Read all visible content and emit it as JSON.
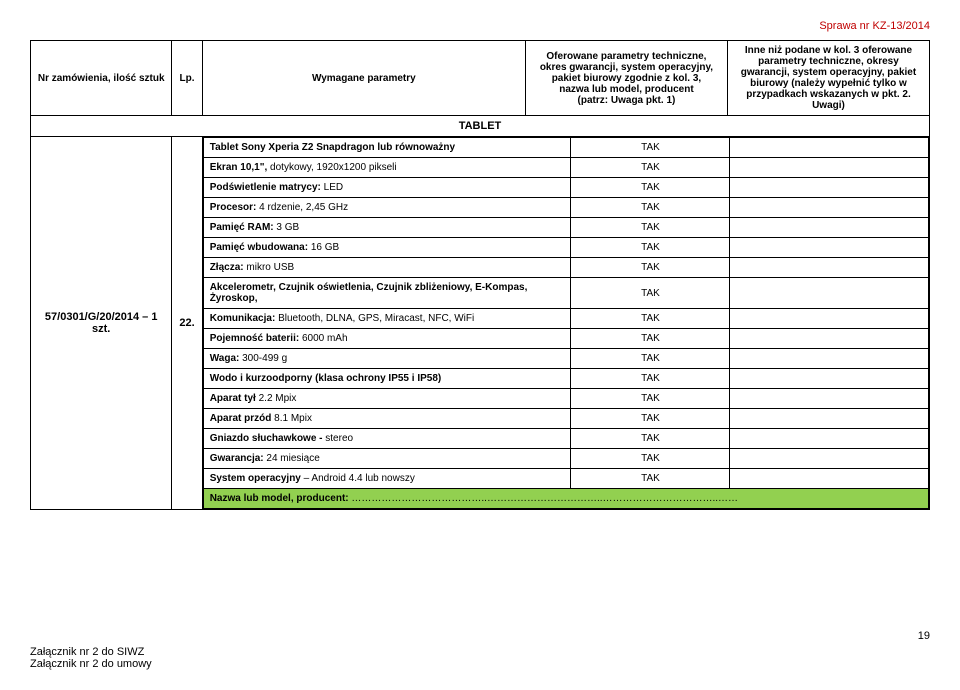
{
  "header": {
    "case_no": "Sprawa nr KZ-13/2014"
  },
  "columns": {
    "nr": "Nr zamówienia, ilość sztuk",
    "lp": "Lp.",
    "param": "Wymagane parametry",
    "offer1": "Oferowane parametry techniczne, okres gwarancji, system operacyjny, pakiet biurowy zgodnie z kol. 3,\nnazwa lub model, producent\n(patrz: Uwaga pkt. 1)",
    "offer2": "Inne niż podane w kol. 3 oferowane parametry techniczne, okresy gwarancji, system operacyjny, pakiet biurowy (należy wypełnić tylko w przypadkach wskazanych w pkt. 2. Uwagi)"
  },
  "section_title": "TABLET",
  "order": {
    "ref": "57/0301/G/20/2014 – 1 szt.",
    "lp": "22."
  },
  "specs": [
    {
      "label_bold": "Tablet Sony Xperia Z2 Snapdragon lub równoważny",
      "label_rest": "",
      "tak": "TAK"
    },
    {
      "label_bold": "Ekran 10,1\", ",
      "label_rest": "dotykowy, 1920x1200 pikseli",
      "tak": "TAK"
    },
    {
      "label_bold": "Podświetlenie matrycy: ",
      "label_rest": "LED",
      "tak": "TAK"
    },
    {
      "label_bold": "Procesor: ",
      "label_rest": " 4 rdzenie, 2,45 GHz",
      "tak": "TAK"
    },
    {
      "label_bold": "Pamięć RAM: ",
      "label_rest": "3 GB",
      "tak": "TAK"
    },
    {
      "label_bold": "Pamięć wbudowana: ",
      "label_rest": "16 GB",
      "tak": "TAK"
    },
    {
      "label_bold": "Złącza: ",
      "label_rest": "mikro USB",
      "tak": "TAK"
    },
    {
      "label_bold": "Akcelerometr, Czujnik oświetlenia, Czujnik zbliżeniowy, E-Kompas, Żyroskop,",
      "label_rest": "",
      "tak": "TAK"
    },
    {
      "label_bold": "Komunikacja: ",
      "label_rest": "Bluetooth, DLNA, GPS, Miracast, NFC, WiFi",
      "tak": "TAK"
    },
    {
      "label_bold": "Pojemność baterii: ",
      "label_rest": "6000 mAh",
      "tak": "TAK"
    },
    {
      "label_bold": "Waga: ",
      "label_rest": "300-499 g",
      "tak": "TAK"
    },
    {
      "label_bold": "Wodo i kurzoodporny (klasa ochrony IP55 i IP58)",
      "label_rest": "",
      "tak": "TAK"
    },
    {
      "label_bold": "Aparat tył ",
      "label_rest": "2.2 Mpix",
      "tak": "TAK"
    },
    {
      "label_bold": "Aparat przód ",
      "label_rest": "8.1 Mpix",
      "tak": "TAK"
    },
    {
      "label_bold": "Gniazdo słuchawkowe - ",
      "label_rest": "stereo",
      "tak": "TAK"
    },
    {
      "label_bold": "Gwarancja: ",
      "label_rest": "24 miesiące",
      "tak": "TAK"
    },
    {
      "label_bold": "System operacyjny ",
      "label_rest": "– Android 4.4 lub nowszy",
      "tak": "TAK"
    }
  ],
  "green": {
    "label": "Nazwa lub model, producent: ",
    "dots": "…………………………………..……………………………..……………………………..……"
  },
  "footer": {
    "page": "19",
    "line1": "Załącznik nr 2 do SIWZ",
    "line2": "Załącznik nr 2 do umowy"
  },
  "colors": {
    "red": "#c00000",
    "green": "#92d050",
    "border": "#000000"
  }
}
